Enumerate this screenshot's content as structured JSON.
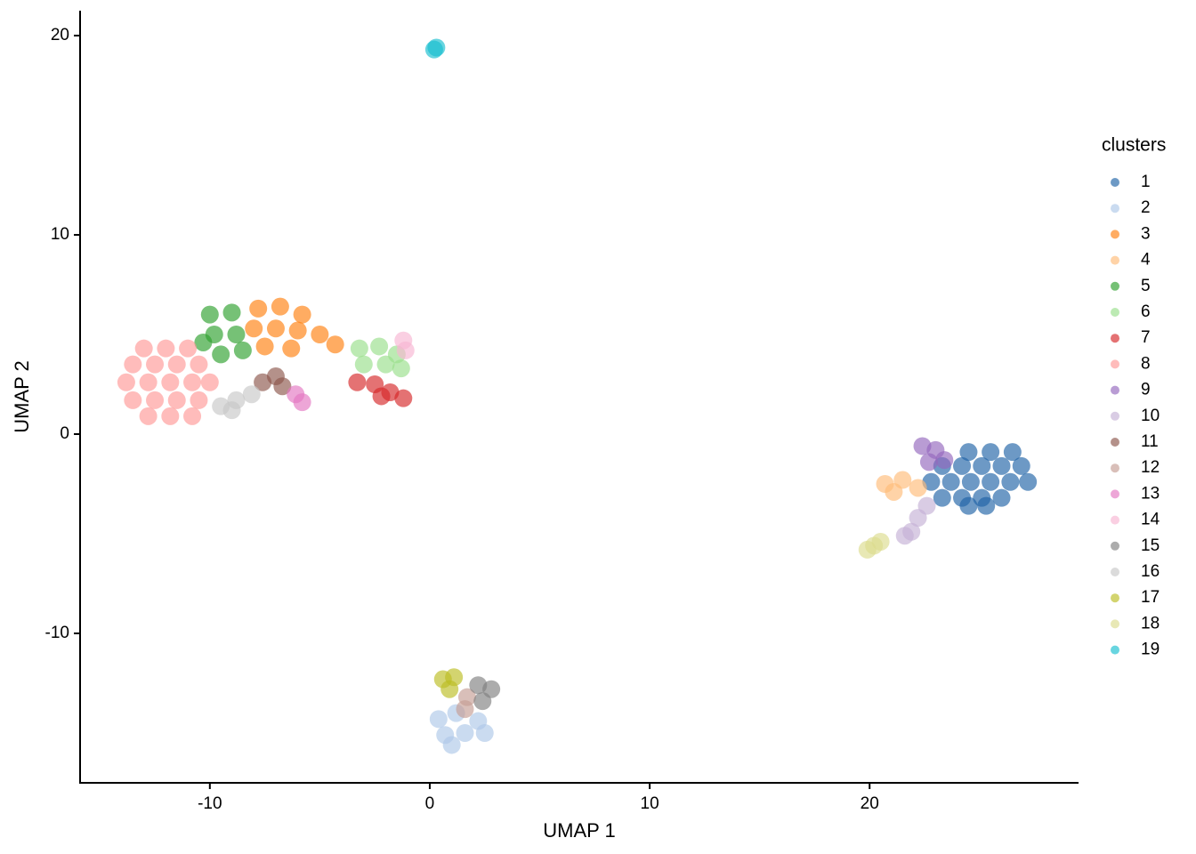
{
  "chart_data": {
    "type": "scatter",
    "xlabel": "UMAP 1",
    "ylabel": "UMAP 2",
    "legend_title": "clusters",
    "legend": "right",
    "xlim": [
      -15.9,
      29.5
    ],
    "ylim": [
      -17.5,
      21.25
    ],
    "xticks": [
      -10,
      0,
      10,
      20
    ],
    "yticks": [
      -10,
      0,
      10,
      20
    ],
    "series": [
      {
        "name": "1",
        "color": "#1f62a6",
        "x": [
          24.5,
          25.5,
          26.5,
          23.3,
          24.2,
          25.1,
          26,
          26.9,
          22.8,
          23.7,
          24.6,
          25.5,
          26.4,
          27.2,
          23.3,
          24.2,
          25.1,
          26,
          24.5,
          25.3
        ],
        "y": [
          -0.9,
          -0.9,
          -0.9,
          -1.6,
          -1.6,
          -1.6,
          -1.6,
          -1.6,
          -2.4,
          -2.4,
          -2.4,
          -2.4,
          -2.4,
          -2.4,
          -3.2,
          -3.2,
          -3.2,
          -3.2,
          -3.6,
          -3.6
        ]
      },
      {
        "name": "2",
        "color": "#aec7e8",
        "x": [
          0.4,
          1.2,
          2.2,
          0.7,
          1.6,
          2.5,
          1.0
        ],
        "y": [
          -14.3,
          -14,
          -14.4,
          -15.1,
          -15,
          -15,
          -15.6
        ]
      },
      {
        "name": "3",
        "color": "#ff7f0e",
        "x": [
          -7.8,
          -6.8,
          -5.8,
          -8,
          -7,
          -6,
          -5,
          -4.3,
          -7.5,
          -6.3
        ],
        "y": [
          6.3,
          6.4,
          6,
          5.3,
          5.3,
          5.2,
          5,
          4.5,
          4.4,
          4.3
        ]
      },
      {
        "name": "4",
        "color": "#ffbb78",
        "x": [
          20.7,
          21.5,
          22.2,
          21.1
        ],
        "y": [
          -2.5,
          -2.3,
          -2.7,
          -2.9
        ]
      },
      {
        "name": "5",
        "color": "#2ca02c",
        "x": [
          -10,
          -9,
          -9.8,
          -8.8,
          -9.5,
          -8.5,
          -10.3
        ],
        "y": [
          6,
          6.1,
          5,
          5,
          4,
          4.2,
          4.6
        ]
      },
      {
        "name": "6",
        "color": "#98df8a",
        "x": [
          -3.2,
          -2.3,
          -1.5,
          -3,
          -2,
          -1.3
        ],
        "y": [
          4.3,
          4.4,
          4,
          3.5,
          3.5,
          3.3
        ]
      },
      {
        "name": "7",
        "color": "#d62728",
        "x": [
          -3.3,
          -2.5,
          -1.8,
          -1.2,
          -2.2
        ],
        "y": [
          2.6,
          2.5,
          2.1,
          1.8,
          1.9
        ]
      },
      {
        "name": "8",
        "color": "#ff9896",
        "x": [
          -13,
          -12,
          -11,
          -13.5,
          -12.5,
          -11.5,
          -10.5,
          -13.8,
          -12.8,
          -11.8,
          -10.8,
          -10,
          -13.5,
          -12.5,
          -11.5,
          -10.5,
          -12.8,
          -11.8,
          -10.8
        ],
        "y": [
          4.3,
          4.3,
          4.3,
          3.5,
          3.5,
          3.5,
          3.5,
          2.6,
          2.6,
          2.6,
          2.6,
          2.6,
          1.7,
          1.7,
          1.7,
          1.7,
          0.9,
          0.9,
          0.9
        ]
      },
      {
        "name": "9",
        "color": "#9467bd",
        "x": [
          22.4,
          23,
          23.4,
          22.7
        ],
        "y": [
          -0.6,
          -0.8,
          -1.3,
          -1.4
        ]
      },
      {
        "name": "10",
        "color": "#c5b0d5",
        "x": [
          22.6,
          22.2,
          21.9,
          21.6
        ],
        "y": [
          -3.6,
          -4.2,
          -4.9,
          -5.1
        ]
      },
      {
        "name": "11",
        "color": "#8c564b",
        "x": [
          -7.6,
          -7,
          -6.7
        ],
        "y": [
          2.6,
          2.9,
          2.4
        ]
      },
      {
        "name": "12",
        "color": "#c49c94",
        "x": [
          1.7,
          1.6
        ],
        "y": [
          -13.2,
          -13.8
        ]
      },
      {
        "name": "13",
        "color": "#e377c2",
        "x": [
          -6.1,
          -5.8
        ],
        "y": [
          2,
          1.6
        ]
      },
      {
        "name": "14",
        "color": "#f7b6d2",
        "x": [
          -1.2,
          -1.1
        ],
        "y": [
          4.7,
          4.2
        ]
      },
      {
        "name": "15",
        "color": "#7f7f7f",
        "x": [
          2.2,
          2.8,
          2.4
        ],
        "y": [
          -12.6,
          -12.8,
          -13.4
        ]
      },
      {
        "name": "16",
        "color": "#c7c7c7",
        "x": [
          -9.5,
          -8.8,
          -8.1,
          -9
        ],
        "y": [
          1.4,
          1.7,
          2,
          1.2
        ]
      },
      {
        "name": "17",
        "color": "#bcbd22",
        "x": [
          0.6,
          1.1,
          0.9
        ],
        "y": [
          -12.3,
          -12.2,
          -12.8
        ]
      },
      {
        "name": "18",
        "color": "#dbdb8d",
        "x": [
          19.9,
          20.2,
          20.5
        ],
        "y": [
          -5.8,
          -5.6,
          -5.4
        ]
      },
      {
        "name": "19",
        "color": "#17becf",
        "x": [
          0.2,
          0.3
        ],
        "y": [
          19.3,
          19.4
        ]
      }
    ]
  }
}
